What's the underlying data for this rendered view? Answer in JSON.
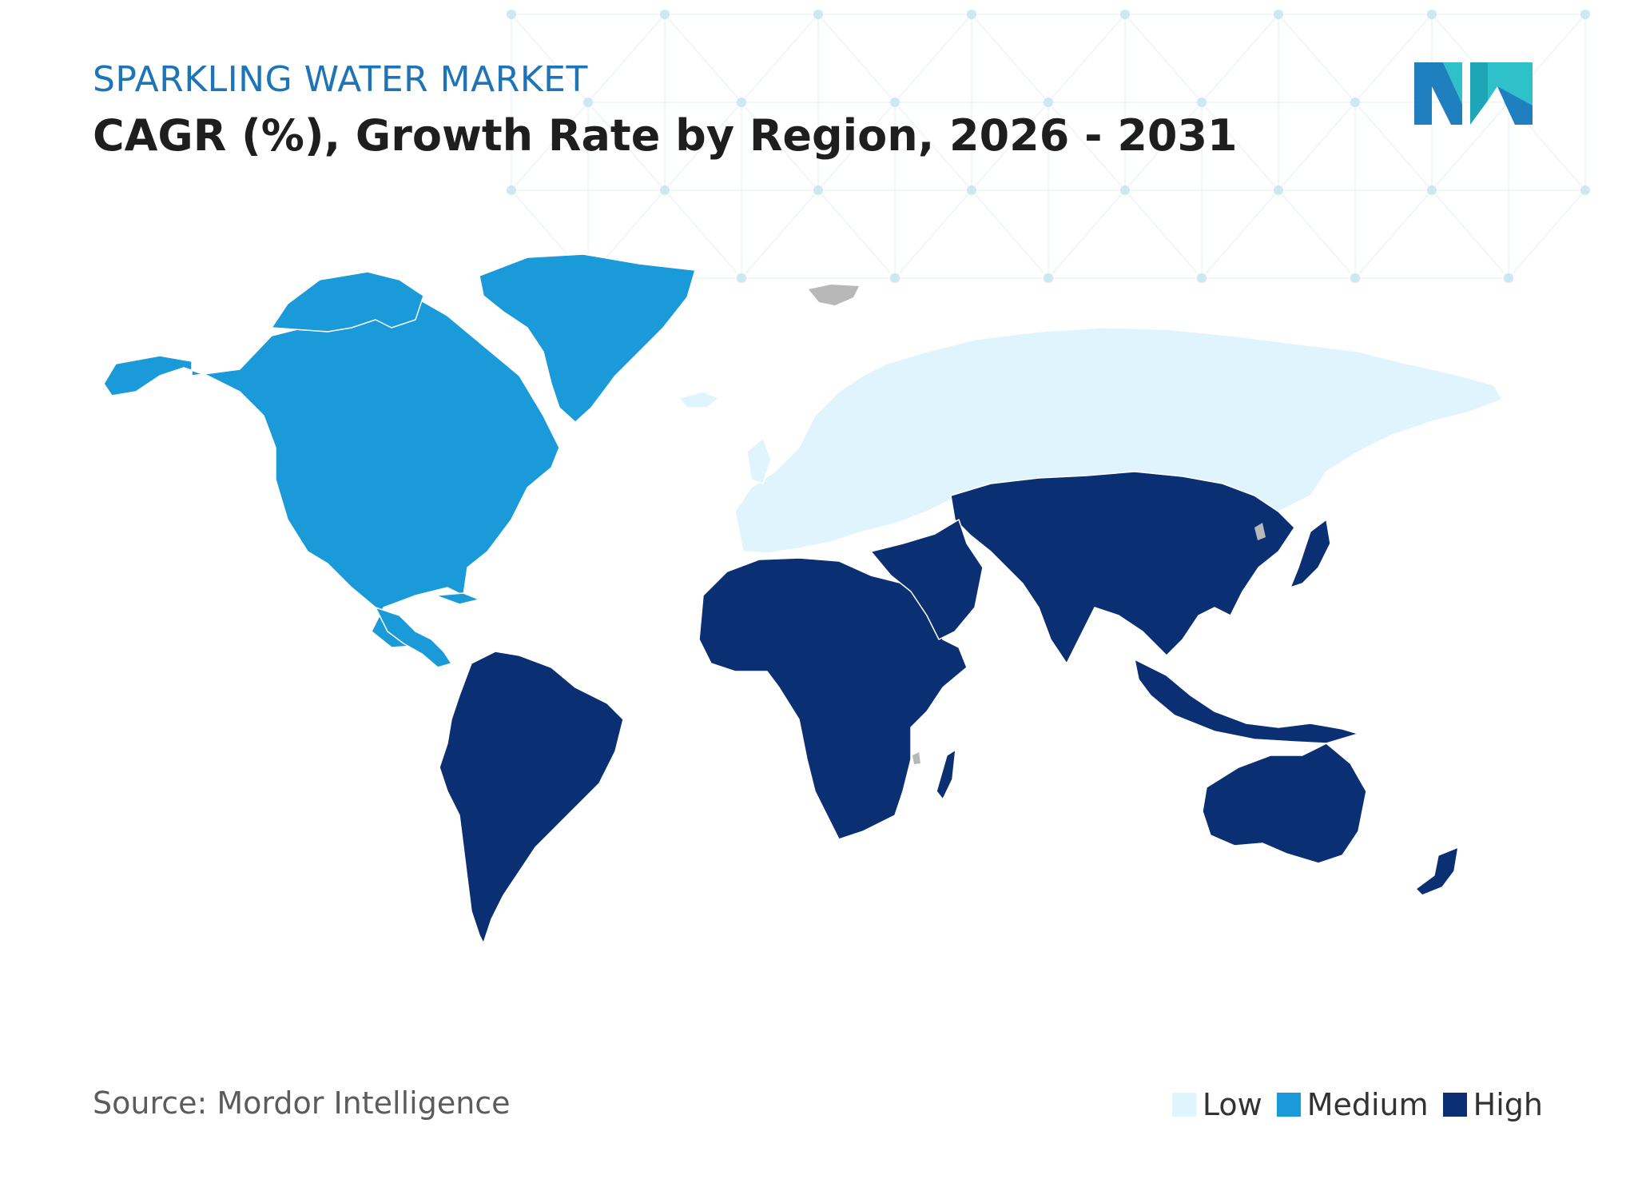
{
  "header": {
    "supertitle": "SPARKLING WATER MARKET",
    "title": "CAGR (%), Growth Rate by Region, 2026 - 2031"
  },
  "footer": {
    "source": "Source: Mordor Intelligence"
  },
  "legend": [
    {
      "label": "Low",
      "color": "#dff4fc"
    },
    {
      "label": "Medium",
      "color": "#1a9ad9"
    },
    {
      "label": "High",
      "color": "#0b2f73"
    }
  ],
  "colors": {
    "no_data": "#b8b8b8",
    "border": "#ffffff",
    "network": "#cfe6f3"
  },
  "map_data": {
    "type": "choropleth",
    "metric": "CAGR (%)",
    "regions": [
      {
        "name": "North America",
        "category": "Medium"
      },
      {
        "name": "Europe",
        "category": "Low"
      },
      {
        "name": "Asia-Pacific",
        "category": "High"
      },
      {
        "name": "South America",
        "category": "High"
      },
      {
        "name": "Middle East and Africa",
        "category": "High"
      }
    ]
  }
}
